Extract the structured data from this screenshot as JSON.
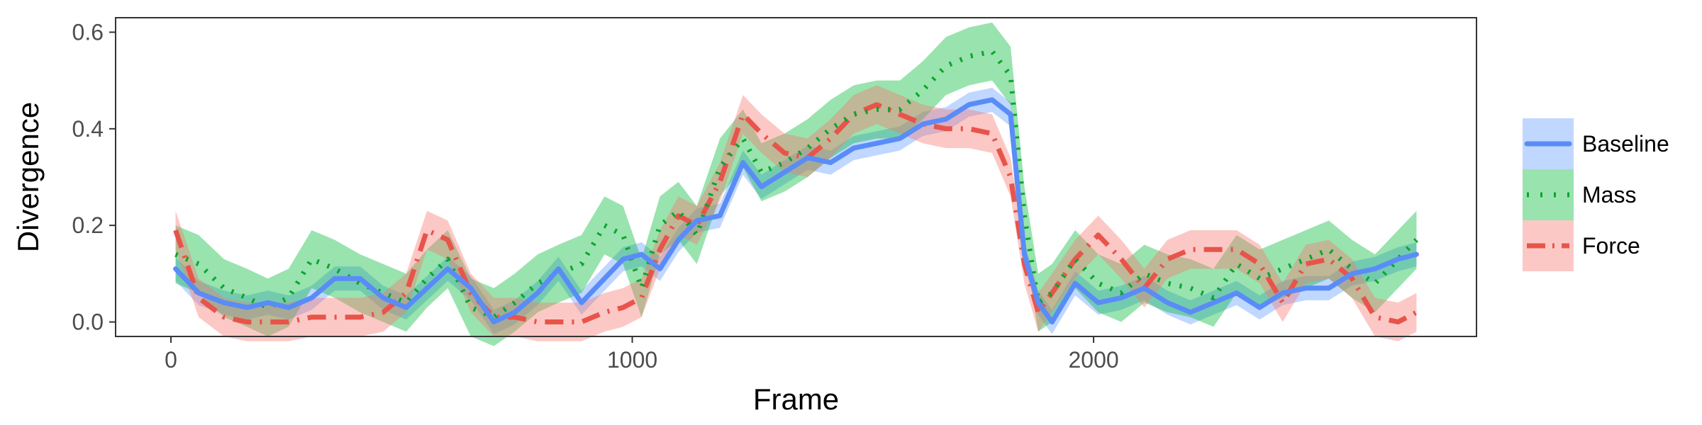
{
  "chart_data": {
    "type": "line",
    "title": "",
    "xlabel": "Frame",
    "ylabel": "Divergence",
    "xlim": [
      -120,
      2830
    ],
    "ylim": [
      -0.03,
      0.63
    ],
    "xticks": [
      0,
      1000,
      2000
    ],
    "yticks": [
      0.0,
      0.2,
      0.4,
      0.6
    ],
    "xtick_labels": [
      "0",
      "1000",
      "2000"
    ],
    "ytick_labels": [
      "0.0",
      "0.2",
      "0.4",
      "0.6"
    ],
    "grid": false,
    "legend_position": "right",
    "x": [
      10,
      60,
      115,
      165,
      210,
      255,
      305,
      355,
      410,
      460,
      510,
      555,
      600,
      650,
      700,
      745,
      795,
      840,
      890,
      940,
      980,
      1020,
      1060,
      1100,
      1140,
      1190,
      1240,
      1280,
      1330,
      1380,
      1430,
      1480,
      1530,
      1580,
      1630,
      1680,
      1730,
      1780,
      1820,
      1850,
      1880,
      1910,
      1960,
      2010,
      2060,
      2110,
      2160,
      2210,
      2260,
      2310,
      2360,
      2410,
      2460,
      2510,
      2560,
      2610,
      2660,
      2700
    ],
    "series": [
      {
        "name": "Baseline",
        "color": "#619CFF",
        "line_color": "#5A8CF7",
        "dash": "solid",
        "values": [
          0.11,
          0.06,
          0.04,
          0.03,
          0.04,
          0.03,
          0.05,
          0.09,
          0.09,
          0.05,
          0.03,
          0.07,
          0.11,
          0.07,
          0.0,
          0.02,
          0.06,
          0.11,
          0.04,
          0.09,
          0.13,
          0.14,
          0.11,
          0.17,
          0.21,
          0.22,
          0.33,
          0.28,
          0.31,
          0.34,
          0.33,
          0.36,
          0.37,
          0.38,
          0.41,
          0.42,
          0.45,
          0.46,
          0.43,
          0.14,
          0.04,
          0.0,
          0.08,
          0.04,
          0.05,
          0.07,
          0.04,
          0.02,
          0.04,
          0.06,
          0.03,
          0.06,
          0.07,
          0.07,
          0.1,
          0.11,
          0.13,
          0.14
        ],
        "band": 0.025
      },
      {
        "name": "Mass",
        "color": "#00BA38",
        "line_color": "#0BA52E",
        "dash": "dotted",
        "values": [
          0.14,
          0.12,
          0.07,
          0.05,
          0.03,
          0.05,
          0.13,
          0.11,
          0.08,
          0.06,
          0.04,
          0.09,
          0.13,
          0.03,
          0.01,
          0.04,
          0.08,
          0.1,
          0.12,
          0.2,
          0.18,
          0.07,
          0.2,
          0.23,
          0.18,
          0.32,
          0.38,
          0.31,
          0.33,
          0.36,
          0.4,
          0.43,
          0.44,
          0.44,
          0.48,
          0.53,
          0.55,
          0.56,
          0.51,
          0.22,
          0.04,
          0.06,
          0.13,
          0.08,
          0.06,
          0.1,
          0.08,
          0.07,
          0.05,
          0.12,
          0.09,
          0.11,
          0.13,
          0.15,
          0.11,
          0.08,
          0.13,
          0.17
        ],
        "band": 0.06
      },
      {
        "name": "Force",
        "color": "#F8766D",
        "line_color": "#E8544A",
        "dash": "dashdot",
        "values": [
          0.19,
          0.05,
          0.01,
          0.0,
          0.0,
          0.0,
          0.01,
          0.01,
          0.01,
          0.02,
          0.06,
          0.19,
          0.17,
          0.06,
          0.01,
          0.01,
          0.0,
          0.0,
          0.0,
          0.02,
          0.03,
          0.05,
          0.15,
          0.22,
          0.2,
          0.29,
          0.43,
          0.39,
          0.35,
          0.34,
          0.38,
          0.43,
          0.45,
          0.43,
          0.41,
          0.4,
          0.4,
          0.39,
          0.3,
          0.12,
          0.02,
          0.06,
          0.13,
          0.18,
          0.13,
          0.07,
          0.13,
          0.15,
          0.15,
          0.15,
          0.12,
          0.04,
          0.12,
          0.13,
          0.09,
          0.01,
          0.0,
          0.02
        ],
        "band": 0.04
      }
    ]
  }
}
